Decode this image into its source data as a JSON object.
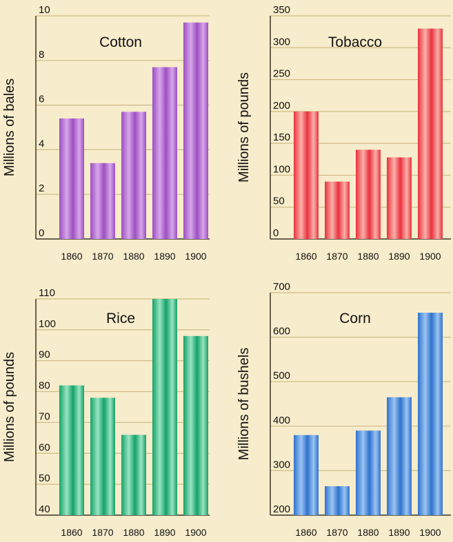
{
  "chart_data": [
    {
      "type": "bar",
      "title": "Cotton",
      "ylabel": "Millions of bales",
      "categories": [
        "1860",
        "1870",
        "1880",
        "1890",
        "1900"
      ],
      "values": [
        5.4,
        3.4,
        5.7,
        7.7,
        9.7
      ],
      "ylim": [
        0,
        10
      ],
      "yticks": [
        "0",
        "2",
        "4",
        "6",
        "8",
        "10"
      ],
      "ytick_values": [
        0,
        2,
        4,
        6,
        8,
        10
      ],
      "color": "#9c4fc0",
      "color_light": "#d7a6ea",
      "grid": true
    },
    {
      "type": "bar",
      "title": "Tobacco",
      "ylabel": "Millions of pounds",
      "categories": [
        "1860",
        "1870",
        "1880",
        "1890",
        "1900"
      ],
      "values": [
        200,
        90,
        140,
        128,
        330
      ],
      "ylim": [
        0,
        350
      ],
      "yticks": [
        "0",
        "50",
        "100",
        "150",
        "200",
        "250",
        "300",
        "350"
      ],
      "ytick_values": [
        0,
        50,
        100,
        150,
        200,
        250,
        300,
        350
      ],
      "color": "#e8323f",
      "color_light": "#fbb0a8",
      "grid": true
    },
    {
      "type": "bar",
      "title": "Rice",
      "ylabel": "Millions of pounds",
      "categories": [
        "1860",
        "1870",
        "1880",
        "1890",
        "1900"
      ],
      "values": [
        82,
        78,
        66,
        110,
        98
      ],
      "ylim": [
        40,
        110
      ],
      "yticks": [
        "40",
        "50",
        "60",
        "70",
        "80",
        "90",
        "100",
        "110"
      ],
      "ytick_values": [
        40,
        50,
        60,
        70,
        80,
        90,
        100,
        110
      ],
      "color": "#13a368",
      "color_light": "#9be3c2",
      "grid": true
    },
    {
      "type": "bar",
      "title": "Corn",
      "ylabel": "Millions of bushels",
      "categories": [
        "1860",
        "1870",
        "1880",
        "1890",
        "1900"
      ],
      "values": [
        380,
        265,
        390,
        465,
        655
      ],
      "ylim": [
        200,
        700
      ],
      "yticks": [
        "200",
        "300",
        "400",
        "500",
        "600",
        "700"
      ],
      "ytick_values": [
        200,
        300,
        400,
        500,
        600,
        700
      ],
      "color": "#2e73cc",
      "color_light": "#9cc4f3",
      "grid": true
    }
  ]
}
